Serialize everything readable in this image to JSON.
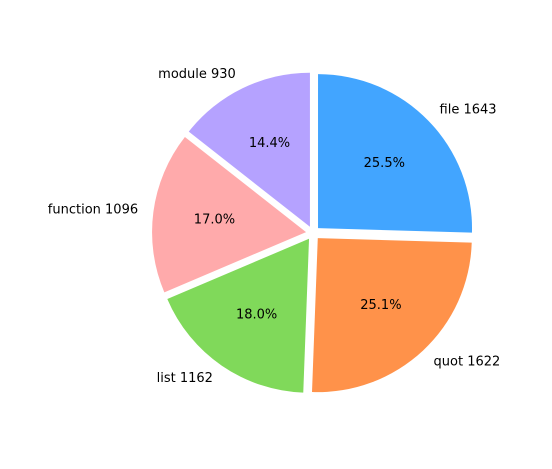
{
  "chart_data": {
    "type": "pie",
    "title": "",
    "start_angle_deg": 90,
    "direction": "clockwise",
    "slices": [
      {
        "label": "file 1643",
        "value": 1643,
        "percent_label": "25.5%",
        "color": "#42a5ff",
        "exploded": true
      },
      {
        "label": "quot 1622",
        "value": 1622,
        "percent_label": "25.1%",
        "color": "#ff924a",
        "exploded": true
      },
      {
        "label": "list 1162",
        "value": 1162,
        "percent_label": "18.0%",
        "color": "#80d95a",
        "exploded": true
      },
      {
        "label": "function 1096",
        "value": 1096,
        "percent_label": "17.0%",
        "color": "#ffaaab",
        "exploded": true
      },
      {
        "label": "module 930",
        "value": 930,
        "percent_label": "14.4%",
        "color": "#b5a2ff",
        "exploded": true
      }
    ]
  }
}
